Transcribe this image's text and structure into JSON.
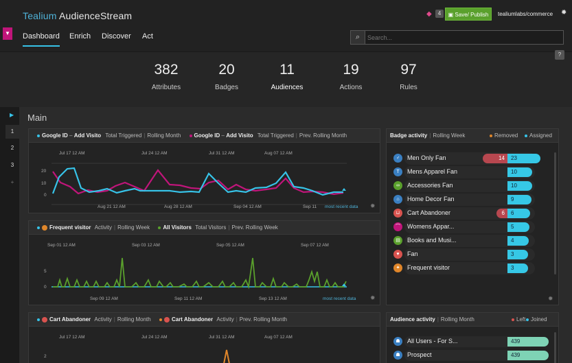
{
  "app": {
    "brand_a": "Tealium",
    "brand_b": "AudienceStream",
    "gem_count": "4",
    "save_label": "Save/ Publish",
    "account": "tealiumlabs/commerce",
    "help": "?"
  },
  "nav": [
    {
      "label": "Dashboard"
    },
    {
      "label": "Enrich"
    },
    {
      "label": "Discover"
    },
    {
      "label": "Act"
    }
  ],
  "search": {
    "placeholder": "Search..."
  },
  "stats": [
    {
      "value": "382",
      "label": "Attributes"
    },
    {
      "value": "20",
      "label": "Badges"
    },
    {
      "value": "11",
      "label": "Audiences"
    },
    {
      "value": "19",
      "label": "Actions"
    },
    {
      "value": "97",
      "label": "Rules"
    }
  ],
  "sidebar": {
    "items": [
      "1",
      "2",
      "3",
      "+"
    ]
  },
  "main_title": "Main",
  "panel1": {
    "left_name": "Google ID",
    "left_sep": "–",
    "left_event": "Add Visito",
    "left_metric": "Total Triggered",
    "left_range": "Rolling Month",
    "right_name": "Google ID",
    "right_sep": "–",
    "right_event": "Add Visito",
    "right_metric": "Total Triggered",
    "right_range": "Prev. Rolling Month",
    "top_ticks": [
      "Jul 17 12 AM",
      "Jul 24 12 AM",
      "Jul 31 12 AM",
      "Aug 07 12 AM"
    ],
    "bottom_ticks": [
      "Aug 21 12 AM",
      "Aug 28 12 AM",
      "Sep 04 12 AM",
      "Sep 11"
    ],
    "y_ticks": [
      "20",
      "10",
      "0"
    ],
    "most_recent": "most recent data"
  },
  "panel2": {
    "left_name": "Frequent visitor",
    "left_metric": "Activity",
    "left_range": "Rolling Week",
    "right_name": "All Visitors",
    "right_metric": "Total Visitors",
    "right_range": "Prev. Rolling Week",
    "top_ticks": [
      "Sep 01 12 AM",
      "Sep 03 12 AM",
      "Sep 05 12 AM",
      "Sep 07 12 AM"
    ],
    "bottom_ticks": [
      "Sep 09 12 AM",
      "Sep 11 12 AM",
      "Sep 13 12 AM"
    ],
    "y_ticks": [
      "5",
      "0"
    ],
    "most_recent": "most recent data"
  },
  "panel3": {
    "left_name": "Cart Abandoner",
    "left_metric": "Activity",
    "left_range": "Rolling Month",
    "right_name": "Cart Abandoner",
    "right_metric": "Activity",
    "right_range": "Prev. Rolling Month",
    "top_ticks": [
      "Jul 17 12 AM",
      "Jul 24 12 AM",
      "Jul 31 12 AM",
      "Aug 07 12 AM"
    ],
    "y_ticks": [
      "2"
    ]
  },
  "badge_panel": {
    "title": "Badge activity",
    "range": "Rolling Week",
    "removed": "Removed",
    "assigned": "Assigned"
  },
  "badges": [
    {
      "label": "Men Only Fan",
      "removed": "14",
      "assigned": "23",
      "icon": "male-icon",
      "color": "#3a7fc1"
    },
    {
      "label": "Mens Apparel Fan",
      "removed": "",
      "assigned": "10",
      "icon": "shirt-icon",
      "color": "#3a7fc1"
    },
    {
      "label": "Accessories Fan",
      "removed": "",
      "assigned": "10",
      "icon": "glasses-icon",
      "color": "#5aa02c"
    },
    {
      "label": "Home Decor Fan",
      "removed": "",
      "assigned": "9",
      "icon": "home-icon",
      "color": "#3a7fc1"
    },
    {
      "label": "Cart Abandoner",
      "removed": "6",
      "assigned": "6",
      "icon": "cart-icon",
      "color": "#d9534f"
    },
    {
      "label": "Womens Appar...",
      "removed": "",
      "assigned": "5",
      "icon": "hanger-icon",
      "color": "#c0157a"
    },
    {
      "label": "Books and Musi...",
      "removed": "",
      "assigned": "4",
      "icon": "book-icon",
      "color": "#5aa02c"
    },
    {
      "label": "Fan",
      "removed": "",
      "assigned": "3",
      "icon": "heart-icon",
      "color": "#d9534f"
    },
    {
      "label": "Frequent visitor",
      "removed": "",
      "assigned": "3",
      "icon": "runner-icon",
      "color": "#e0862a"
    }
  ],
  "audience_panel": {
    "title": "Audience activity",
    "range": "Rolling Month",
    "left": "Left",
    "joined": "Joined"
  },
  "audiences": [
    {
      "label": "All Users - For S...",
      "joined": "439"
    },
    {
      "label": "Prospect",
      "joined": "439"
    }
  ],
  "colors": {
    "accent": "#37c3e8",
    "magenta": "#c0157a",
    "green": "#5aa02c",
    "red": "#b7474f",
    "orange": "#e0862a",
    "mint": "#7ed3b5"
  }
}
